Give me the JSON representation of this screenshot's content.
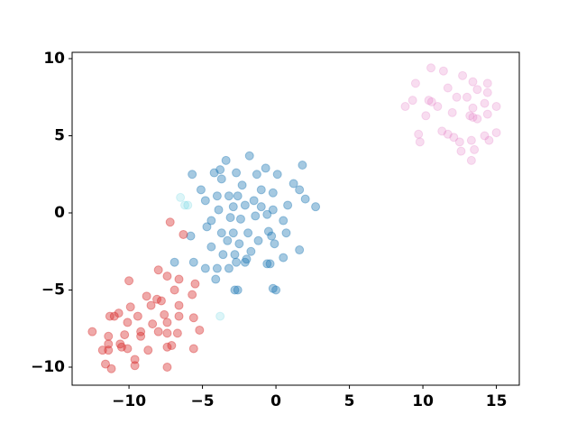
{
  "chart_data": {
    "type": "scatter",
    "xlim": [
      -13.87,
      16.56
    ],
    "ylim": [
      -11.17,
      10.41
    ],
    "xticks": [
      {
        "value": -10,
        "label": "−10"
      },
      {
        "value": -5,
        "label": "−5"
      },
      0,
      5,
      10,
      15
    ],
    "yticks": [
      {
        "value": -10,
        "label": "−10"
      },
      {
        "value": -5,
        "label": "−5"
      },
      0,
      5,
      10
    ],
    "series": [
      {
        "color": "#e377c2",
        "opacity": 0.25,
        "x": [
          10.55,
          11.4,
          9.5,
          12.7,
          13.4,
          14.4,
          11.7,
          12.3,
          13.0,
          13.7,
          14.4,
          10.4,
          9.3,
          8.8,
          11.0,
          12.0,
          13.4,
          14.2,
          15.0,
          10.2,
          13.2,
          14.4,
          13.7,
          9.7,
          11.3,
          12.1,
          12.5,
          13.3,
          14.2,
          15.0,
          9.8,
          13.5,
          12.6,
          13.3,
          14.5,
          11.7,
          10.6,
          13.4
        ],
        "values": [
          9.4,
          9.2,
          8.4,
          8.9,
          8.5,
          8.4,
          8.1,
          7.5,
          7.5,
          8.0,
          7.8,
          7.3,
          7.3,
          6.9,
          6.9,
          6.5,
          6.8,
          7.1,
          6.9,
          6.3,
          6.3,
          6.4,
          6.1,
          5.1,
          5.3,
          4.9,
          4.6,
          4.7,
          5.0,
          5.2,
          4.6,
          4.1,
          4.0,
          3.4,
          4.7,
          5.1,
          7.2,
          6.2
        ]
      },
      {
        "color": "#1f77b4",
        "opacity": 0.4,
        "x": [
          -1.8,
          -3.4,
          -5.7,
          -3.8,
          -4.2,
          -2.7,
          -0.7,
          0.1,
          1.8,
          -1.3,
          -3.7,
          -5.1,
          -2.3,
          -1.0,
          -0.2,
          1.2,
          1.6,
          -4.0,
          -3.2,
          -4.8,
          -2.6,
          -1.5,
          0.8,
          2.0,
          2.7,
          -2.9,
          -2.1,
          -1.0,
          -0.2,
          -3.9,
          -4.4,
          -3.1,
          -1.4,
          -0.6,
          -2.4,
          0.5,
          -5.8,
          -4.7,
          -3.7,
          -2.9,
          -1.9,
          -0.5,
          0.7,
          -4.4,
          -3.3,
          -2.5,
          -1.2,
          -0.3,
          -0.1,
          1.6,
          -3.6,
          -2.8,
          -1.7,
          -2.7,
          -2.1,
          0.5,
          -0.6,
          -5.6,
          -4.8,
          -4.0,
          -3.2,
          -4.1,
          -0.4,
          -2.6,
          -2.8,
          -0.2,
          0.0,
          -6.9,
          -2.0
        ],
        "values": [
          3.7,
          3.4,
          2.5,
          2.8,
          2.6,
          2.6,
          2.9,
          2.5,
          3.1,
          2.5,
          2.2,
          1.5,
          1.8,
          1.5,
          1.3,
          1.9,
          1.5,
          1.1,
          1.1,
          0.8,
          1.1,
          0.8,
          0.5,
          0.9,
          0.4,
          0.4,
          0.5,
          0.4,
          0.2,
          0.2,
          -0.5,
          -0.3,
          -0.2,
          -0.1,
          -0.4,
          -0.5,
          -1.5,
          -0.9,
          -1.3,
          -1.3,
          -1.3,
          -1.2,
          -1.3,
          -2.2,
          -1.8,
          -2.0,
          -1.8,
          -1.5,
          -2.0,
          -2.4,
          -2.7,
          -2.7,
          -2.5,
          -3.2,
          -3.2,
          -2.9,
          -3.3,
          -3.2,
          -3.6,
          -3.6,
          -3.6,
          -4.3,
          -3.3,
          -5.0,
          -5.0,
          -4.9,
          -5.0,
          -3.2,
          -3.0
        ]
      },
      {
        "color": "#d62728",
        "opacity": 0.4,
        "x": [
          -7.2,
          -6.3,
          -10.0,
          -8.0,
          -7.4,
          -6.6,
          -5.5,
          -6.9,
          -8.8,
          -8.1,
          -7.8,
          -5.7,
          -9.9,
          -8.5,
          -6.6,
          -10.7,
          -11.3,
          -11.0,
          -9.4,
          -7.6,
          -6.6,
          -5.6,
          -10.1,
          -8.4,
          -7.4,
          -12.5,
          -11.4,
          -9.2,
          -10.3,
          -9.2,
          -8.0,
          -7.4,
          -6.7,
          -5.2,
          -11.4,
          -10.6,
          -10.5,
          -11.8,
          -11.4,
          -10.1,
          -7.4,
          -7.1,
          -5.6,
          -8.7,
          -9.6,
          -11.6,
          -11.2,
          -9.6,
          -7.4
        ],
        "values": [
          -0.6,
          -1.4,
          -4.4,
          -3.7,
          -4.1,
          -4.3,
          -4.6,
          -5.0,
          -5.4,
          -5.6,
          -5.7,
          -5.3,
          -6.1,
          -6.0,
          -6.0,
          -6.5,
          -6.7,
          -6.7,
          -6.7,
          -6.6,
          -6.7,
          -6.8,
          -7.1,
          -7.2,
          -7.1,
          -7.7,
          -8.0,
          -7.7,
          -7.9,
          -8.0,
          -7.7,
          -7.8,
          -7.8,
          -7.6,
          -8.5,
          -8.5,
          -8.7,
          -8.9,
          -8.9,
          -8.8,
          -8.7,
          -8.6,
          -8.8,
          -8.9,
          -9.5,
          -9.8,
          -10.1,
          -9.9,
          -10.0
        ]
      },
      {
        "color": "#17becf",
        "opacity": 0.15,
        "x": [
          -6.5,
          -6.2,
          -6.0,
          -3.8
        ],
        "values": [
          1.0,
          0.5,
          0.5,
          -6.7
        ]
      }
    ]
  }
}
